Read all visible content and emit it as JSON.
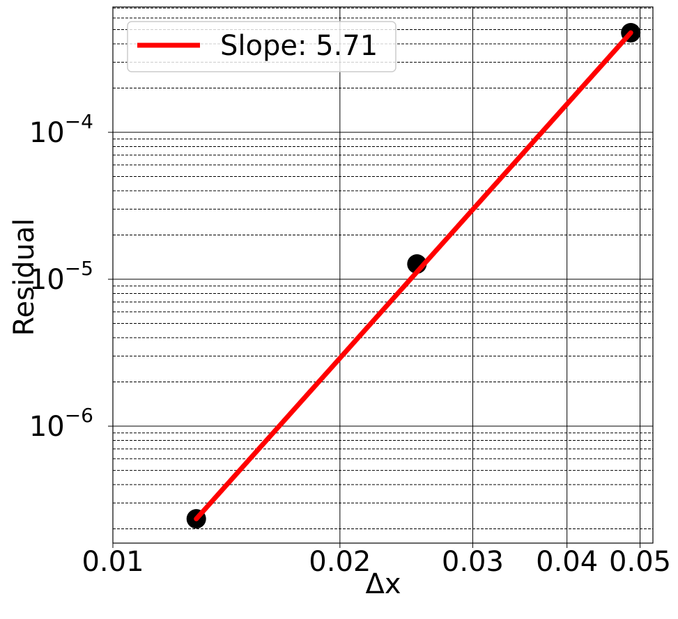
{
  "chart_data": {
    "type": "scatter",
    "log_x": true,
    "log_y": true,
    "grid": true,
    "x_label": "Δx",
    "y_label": "Residual",
    "xlim": [
      0.01,
      0.052
    ],
    "ylim": [
      1.6e-07,
      0.000713
    ],
    "xticks": [
      0.01,
      0.02,
      0.03,
      0.04,
      0.05
    ],
    "yticks": [
      {
        "value": 1e-06,
        "label": "10",
        "exponent": "−6"
      },
      {
        "value": 1e-05,
        "label": "10",
        "exponent": "−5"
      },
      {
        "value": 0.0001,
        "label": "10",
        "exponent": "−4"
      }
    ],
    "minor_yticks": [
      2e-07,
      3e-07,
      4e-07,
      5e-07,
      6e-07,
      7e-07,
      8e-07,
      9e-07,
      2e-06,
      3e-06,
      4e-06,
      5e-06,
      6e-06,
      7e-06,
      8e-06,
      9e-06,
      2e-05,
      3e-05,
      4e-05,
      5e-05,
      6e-05,
      7e-05,
      8e-05,
      9e-05,
      0.0002,
      0.0003,
      0.0004,
      0.0005,
      0.0006,
      0.0007
    ],
    "legend": "upper left",
    "series": [
      {
        "color": "#000000",
        "x": [
          0.0129,
          0.0253,
          0.0486
        ],
        "values": [
          2.34e-07,
          1.27e-05,
          0.000476
        ]
      },
      {
        "name": "Slope: 5.71",
        "color": "#ff0000",
        "x": [
          0.0129,
          0.0486
        ],
        "values": [
          2.34e-07,
          0.000476
        ]
      }
    ]
  }
}
